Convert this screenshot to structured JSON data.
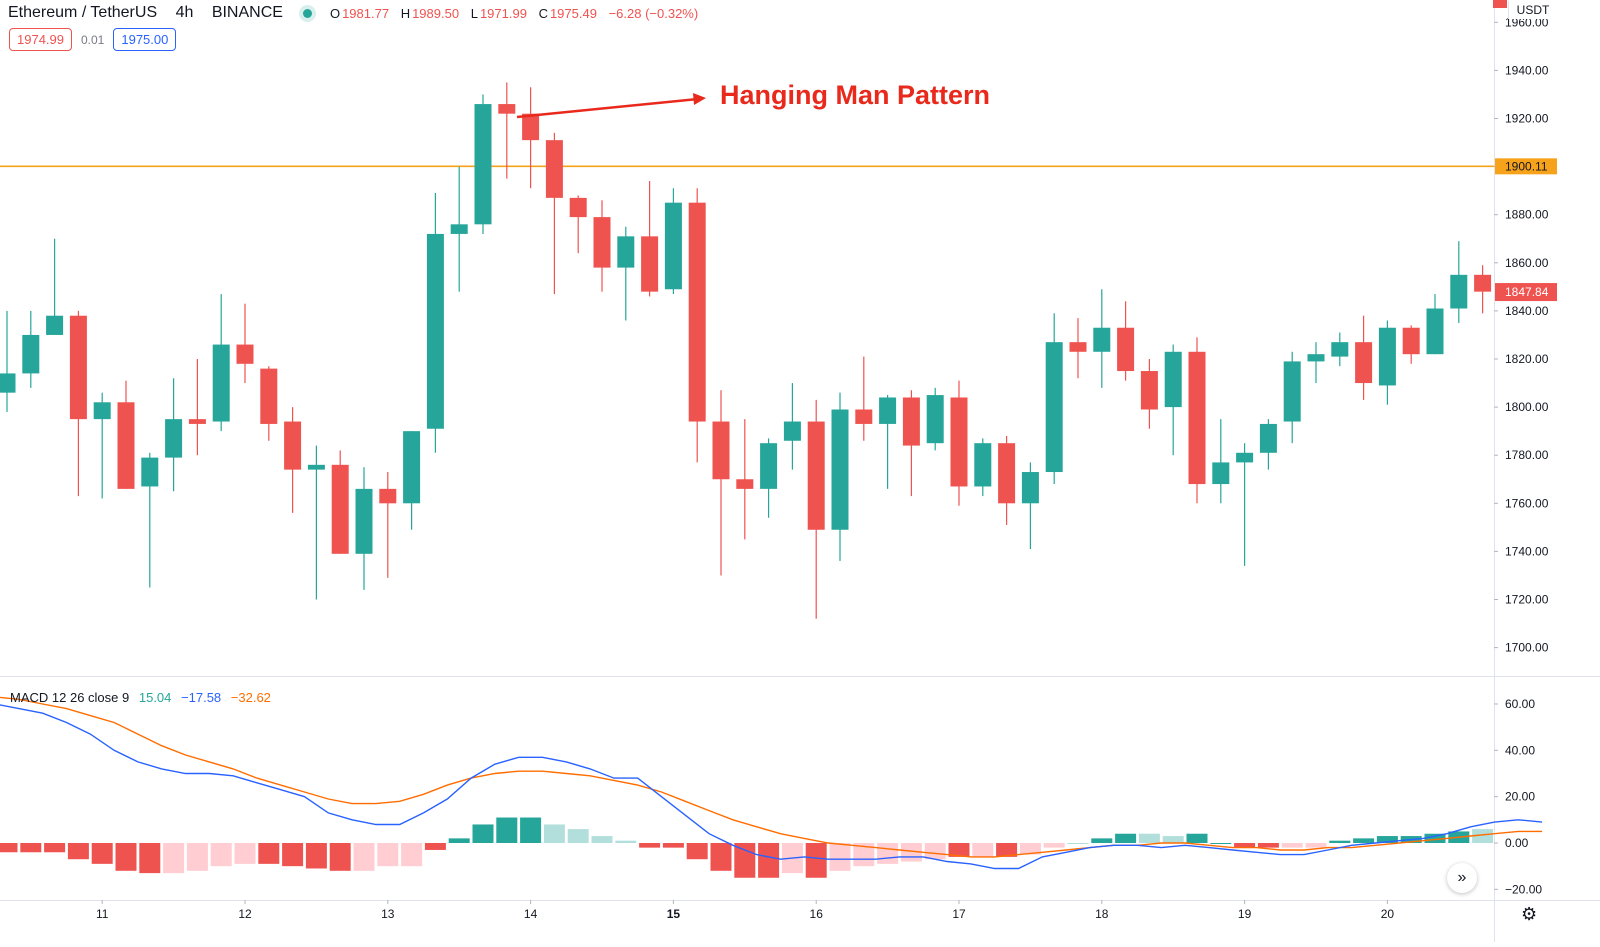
{
  "header": {
    "symbol": "Ethereum / TetherUS",
    "interval": "4h",
    "exchange": "BINANCE",
    "ohlc": {
      "o_label": "O",
      "o": "1981.77",
      "h_label": "H",
      "h": "1989.50",
      "l_label": "L",
      "l": "1971.99",
      "c_label": "C",
      "c": "1975.49",
      "change": "−6.28 (−0.32%)"
    }
  },
  "prices": {
    "sell": "1974.99",
    "spread": "0.01",
    "buy": "1975.00"
  },
  "currency": "USDT",
  "annotation": {
    "text": "Hanging Man Pattern",
    "color": "#e8291c"
  },
  "colors": {
    "up": "#26a69a",
    "down": "#ef5350",
    "hline": "#f7a21b",
    "macd": "#2962ff",
    "signal": "#ff6d00"
  },
  "chart_data": [
    {
      "type": "candlestick",
      "title": "Ethereum / TetherUS · 4h · BINANCE",
      "x_tick_labels": [
        "11",
        "12",
        "13",
        "14",
        "15",
        "16",
        "17",
        "18",
        "19",
        "20"
      ],
      "y_ticks": [
        "1700.00",
        "1720.00",
        "1740.00",
        "1760.00",
        "1780.00",
        "1800.00",
        "1820.00",
        "1840.00",
        "1860.00",
        "1880.00",
        "1900.00",
        "1920.00",
        "1940.00",
        "1960.00"
      ],
      "ylim": [
        1689,
        1969
      ],
      "horizontal_line": {
        "value": 1900.11,
        "label": "1900.11"
      },
      "last_price_label": "1847.84",
      "last_price": 1847.84,
      "candles": [
        {
          "o": 1806,
          "h": 1840,
          "l": 1798,
          "c": 1814
        },
        {
          "o": 1814,
          "h": 1840,
          "l": 1808,
          "c": 1830
        },
        {
          "o": 1830,
          "h": 1870,
          "l": 1830,
          "c": 1838
        },
        {
          "o": 1838,
          "h": 1840,
          "l": 1763,
          "c": 1795
        },
        {
          "o": 1795,
          "h": 1806,
          "l": 1762,
          "c": 1802
        },
        {
          "o": 1802,
          "h": 1811,
          "l": 1766,
          "c": 1766
        },
        {
          "o": 1767,
          "h": 1781,
          "l": 1725,
          "c": 1779
        },
        {
          "o": 1779,
          "h": 1812,
          "l": 1765,
          "c": 1795
        },
        {
          "o": 1795,
          "h": 1820,
          "l": 1780,
          "c": 1793
        },
        {
          "o": 1794,
          "h": 1847,
          "l": 1790,
          "c": 1826
        },
        {
          "o": 1826,
          "h": 1843,
          "l": 1810,
          "c": 1818
        },
        {
          "o": 1816,
          "h": 1817,
          "l": 1786,
          "c": 1793
        },
        {
          "o": 1794,
          "h": 1800,
          "l": 1756,
          "c": 1774
        },
        {
          "o": 1774,
          "h": 1784,
          "l": 1720,
          "c": 1776
        },
        {
          "o": 1776,
          "h": 1782,
          "l": 1739,
          "c": 1739
        },
        {
          "o": 1739,
          "h": 1775,
          "l": 1724,
          "c": 1766
        },
        {
          "o": 1766,
          "h": 1773,
          "l": 1729,
          "c": 1760
        },
        {
          "o": 1760,
          "h": 1790,
          "l": 1749,
          "c": 1790
        },
        {
          "o": 1791,
          "h": 1889,
          "l": 1781,
          "c": 1872
        },
        {
          "o": 1872,
          "h": 1900,
          "l": 1848,
          "c": 1876
        },
        {
          "o": 1876,
          "h": 1930,
          "l": 1872,
          "c": 1926
        },
        {
          "o": 1926,
          "h": 1935,
          "l": 1895,
          "c": 1922
        },
        {
          "o": 1922,
          "h": 1933,
          "l": 1891,
          "c": 1911
        },
        {
          "o": 1911,
          "h": 1914,
          "l": 1847,
          "c": 1887
        },
        {
          "o": 1887,
          "h": 1888,
          "l": 1864,
          "c": 1879
        },
        {
          "o": 1879,
          "h": 1886,
          "l": 1848,
          "c": 1858
        },
        {
          "o": 1858,
          "h": 1875,
          "l": 1836,
          "c": 1871
        },
        {
          "o": 1871,
          "h": 1894,
          "l": 1846,
          "c": 1848
        },
        {
          "o": 1849,
          "h": 1891,
          "l": 1847,
          "c": 1885
        },
        {
          "o": 1885,
          "h": 1891,
          "l": 1777,
          "c": 1794
        },
        {
          "o": 1794,
          "h": 1807,
          "l": 1730,
          "c": 1770
        },
        {
          "o": 1770,
          "h": 1795,
          "l": 1745,
          "c": 1766
        },
        {
          "o": 1766,
          "h": 1787,
          "l": 1754,
          "c": 1785
        },
        {
          "o": 1786,
          "h": 1810,
          "l": 1774,
          "c": 1794
        },
        {
          "o": 1794,
          "h": 1803,
          "l": 1712,
          "c": 1749
        },
        {
          "o": 1749,
          "h": 1806,
          "l": 1736,
          "c": 1799
        },
        {
          "o": 1799,
          "h": 1821,
          "l": 1786,
          "c": 1793
        },
        {
          "o": 1793,
          "h": 1805,
          "l": 1766,
          "c": 1804
        },
        {
          "o": 1804,
          "h": 1807,
          "l": 1763,
          "c": 1784
        },
        {
          "o": 1785,
          "h": 1808,
          "l": 1782,
          "c": 1805
        },
        {
          "o": 1804,
          "h": 1811,
          "l": 1759,
          "c": 1767
        },
        {
          "o": 1767,
          "h": 1787,
          "l": 1763,
          "c": 1785
        },
        {
          "o": 1785,
          "h": 1788,
          "l": 1751,
          "c": 1760
        },
        {
          "o": 1760,
          "h": 1777,
          "l": 1741,
          "c": 1773
        },
        {
          "o": 1773,
          "h": 1839,
          "l": 1768,
          "c": 1827
        },
        {
          "o": 1827,
          "h": 1837,
          "l": 1812,
          "c": 1823
        },
        {
          "o": 1823,
          "h": 1849,
          "l": 1808,
          "c": 1833
        },
        {
          "o": 1833,
          "h": 1844,
          "l": 1811,
          "c": 1815
        },
        {
          "o": 1815,
          "h": 1820,
          "l": 1791,
          "c": 1799
        },
        {
          "o": 1800,
          "h": 1826,
          "l": 1780,
          "c": 1823
        },
        {
          "o": 1823,
          "h": 1829,
          "l": 1760,
          "c": 1768
        },
        {
          "o": 1768,
          "h": 1795,
          "l": 1760,
          "c": 1777
        },
        {
          "o": 1777,
          "h": 1785,
          "l": 1734,
          "c": 1781
        },
        {
          "o": 1781,
          "h": 1795,
          "l": 1774,
          "c": 1793
        },
        {
          "o": 1794,
          "h": 1823,
          "l": 1785,
          "c": 1819
        },
        {
          "o": 1819,
          "h": 1827,
          "l": 1810,
          "c": 1822
        },
        {
          "o": 1821,
          "h": 1831,
          "l": 1817,
          "c": 1827
        },
        {
          "o": 1827,
          "h": 1838,
          "l": 1803,
          "c": 1810
        },
        {
          "o": 1809,
          "h": 1836,
          "l": 1801,
          "c": 1833
        },
        {
          "o": 1833,
          "h": 1834,
          "l": 1818,
          "c": 1822
        },
        {
          "o": 1822,
          "h": 1847,
          "l": 1822,
          "c": 1841
        },
        {
          "o": 1841,
          "h": 1869,
          "l": 1835,
          "c": 1855
        },
        {
          "o": 1855,
          "h": 1859,
          "l": 1839,
          "c": 1848
        }
      ]
    },
    {
      "type": "macd",
      "title": "MACD 12 26 close 9",
      "legend_values": [
        "15.04",
        "−17.58",
        "−32.62"
      ],
      "y_ticks": [
        "−20.00",
        "0.00",
        "20.00",
        "40.00",
        "60.00"
      ],
      "ylim": [
        -25,
        68
      ],
      "histogram": [
        -4,
        -4,
        -4,
        -7,
        -9,
        -12,
        -13,
        -13,
        -12,
        -10,
        -9,
        -9,
        -10,
        -11,
        -12,
        -12,
        -10,
        -10,
        -3,
        2,
        8,
        11,
        11,
        8,
        6,
        3,
        1,
        -2,
        -2,
        -7,
        -12,
        -15,
        -15,
        -13,
        -15,
        -12,
        -10,
        -9,
        -8,
        -7,
        -6,
        -6,
        -6,
        -5,
        -2,
        0,
        2,
        4,
        4,
        3,
        4,
        0,
        -2,
        -2,
        -2,
        -2,
        1,
        2,
        3,
        3,
        4,
        5,
        6
      ],
      "histogram_shade": [
        "d",
        "d",
        "d",
        "d",
        "d",
        "d",
        "d",
        "l",
        "l",
        "l",
        "l",
        "d",
        "d",
        "d",
        "d",
        "l",
        "l",
        "l",
        "d",
        "d",
        "d",
        "d",
        "d",
        "l",
        "l",
        "l",
        "l",
        "d",
        "d",
        "d",
        "d",
        "d",
        "d",
        "l",
        "d",
        "l",
        "l",
        "l",
        "l",
        "l",
        "d",
        "l",
        "d",
        "l",
        "l",
        "l",
        "d",
        "d",
        "l",
        "l",
        "d",
        "d",
        "d",
        "d",
        "l",
        "l",
        "d",
        "d",
        "d",
        "d",
        "d",
        "d",
        "l"
      ],
      "macd_line": [
        60,
        58,
        56,
        52,
        47,
        40,
        35,
        32,
        30,
        30,
        29,
        26,
        23,
        20,
        13,
        10,
        8,
        8,
        13,
        19,
        28,
        34,
        37,
        37,
        35,
        32,
        28,
        28,
        20,
        12,
        4,
        -1,
        -5,
        -7,
        -6,
        -7,
        -7,
        -7,
        -6,
        -6,
        -8,
        -9,
        -11,
        -11,
        -6,
        -4,
        -2,
        -1,
        -1,
        -2,
        -1,
        -2,
        -3,
        -4,
        -5,
        -5,
        -3,
        -1,
        0,
        1,
        2,
        4,
        7,
        9,
        10,
        9
      ],
      "signal_line": [
        63,
        62,
        60,
        58,
        55,
        52,
        47,
        42,
        38,
        35,
        32,
        28,
        25,
        22,
        19,
        17,
        17,
        18,
        21,
        25,
        28,
        30,
        31,
        31,
        30,
        29,
        27,
        25,
        22,
        18,
        14,
        10,
        7,
        4,
        2,
        0,
        -1,
        -2,
        -3,
        -4,
        -5,
        -6,
        -6,
        -5,
        -4,
        -3,
        -2,
        -1,
        -1,
        0,
        0,
        -1,
        -2,
        -2,
        -3,
        -3,
        -2,
        -2,
        -1,
        0,
        1,
        2,
        3,
        4,
        5,
        5
      ]
    }
  ]
}
